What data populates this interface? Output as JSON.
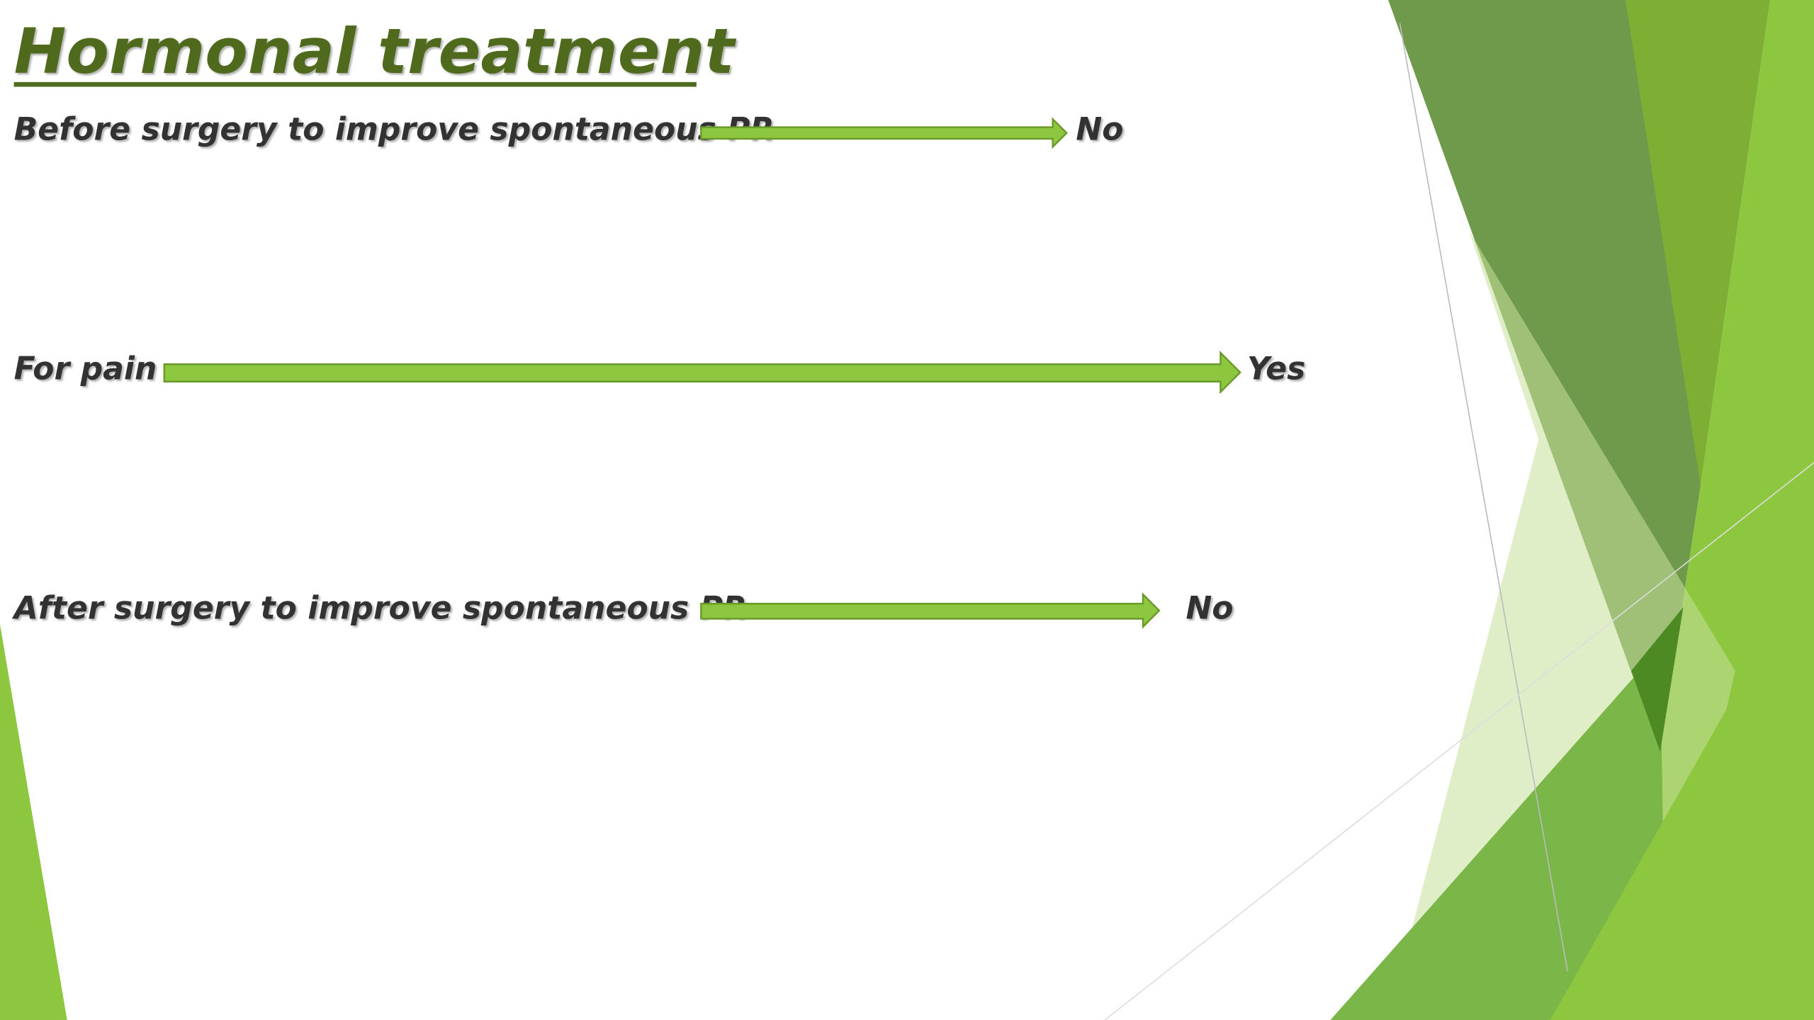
{
  "title": "Hormonal treatment",
  "rows": [
    {
      "label": "Before surgery to improve spontaneous PR",
      "answer": "No"
    },
    {
      "label": "For pain",
      "answer": "Yes"
    },
    {
      "label": "After surgery to improve spontaneous PR",
      "answer": "No"
    }
  ]
}
